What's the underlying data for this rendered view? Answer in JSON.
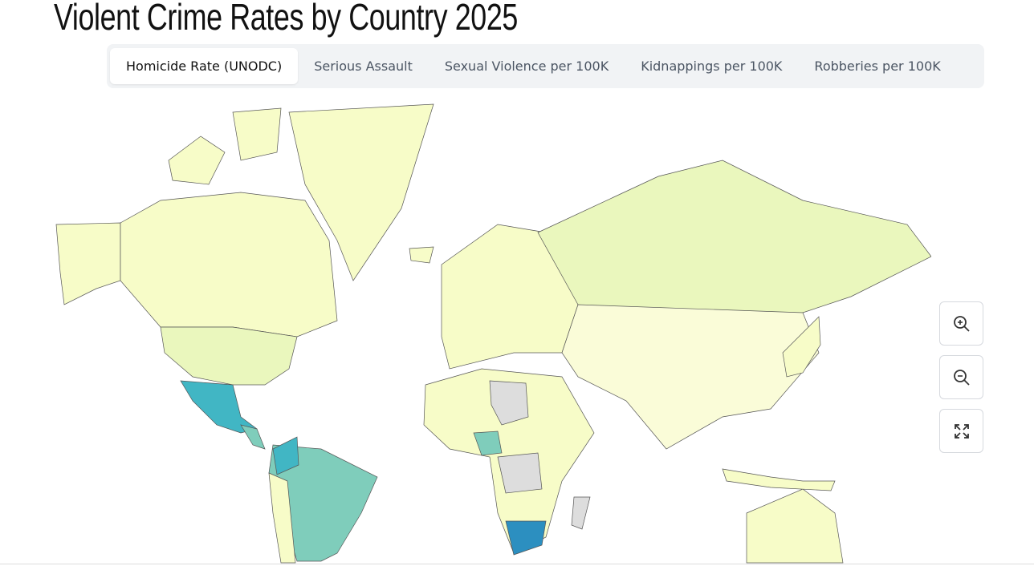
{
  "header": {
    "title": "Violent Crime Rates by Country 2025"
  },
  "tabs": [
    "Homicide Rate (UNODC)",
    "Serious Assault",
    "Sexual Violence per 100K",
    "Kidnappings per 100K",
    "Robberies per 100K"
  ]
}
